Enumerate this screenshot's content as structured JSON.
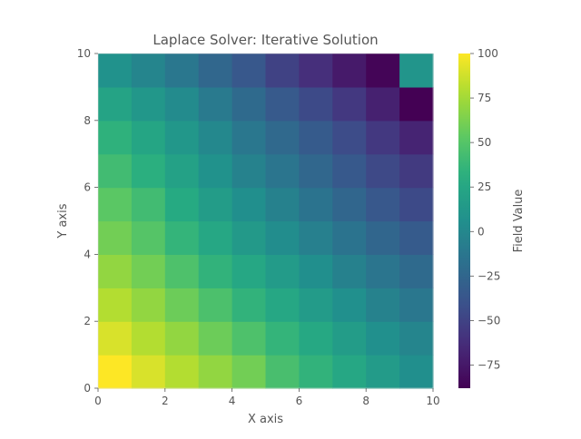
{
  "chart_data": {
    "type": "heatmap",
    "title": "Laplace Solver: Iterative Solution",
    "xlabel": "X axis",
    "ylabel": "Y axis",
    "colorbar_label": "Field Value",
    "colormap": "viridis",
    "xlim": [
      0,
      10
    ],
    "ylim": [
      0,
      10
    ],
    "clim": [
      -88,
      100
    ],
    "x_ticks": [
      "0",
      "2",
      "4",
      "6",
      "8",
      "10"
    ],
    "y_ticks": [
      "0",
      "2",
      "4",
      "6",
      "8",
      "10"
    ],
    "colorbar_ticks": [
      {
        "value": 100,
        "label": "100"
      },
      {
        "value": 75,
        "label": "75"
      },
      {
        "value": 50,
        "label": "50"
      },
      {
        "value": 25,
        "label": "25"
      },
      {
        "value": 0,
        "label": "0"
      },
      {
        "value": -25,
        "label": "−25"
      },
      {
        "value": -50,
        "label": "−50"
      },
      {
        "value": -75,
        "label": "−75"
      }
    ],
    "grid": false,
    "cell_size": 1,
    "rows_bottom_to_top": [
      [
        100,
        90,
        80,
        70,
        60,
        45,
        35,
        25,
        15,
        5
      ],
      [
        90,
        80,
        70,
        58,
        47,
        36,
        26,
        16,
        6,
        -2
      ],
      [
        80,
        70,
        58,
        46,
        35,
        25,
        15,
        6,
        -4,
        -12
      ],
      [
        70,
        60,
        47,
        35,
        25,
        15,
        5,
        -5,
        -14,
        -22
      ],
      [
        60,
        50,
        36,
        25,
        14,
        4,
        -6,
        -15,
        -25,
        -33
      ],
      [
        52,
        42,
        28,
        16,
        5,
        -5,
        -15,
        -25,
        -36,
        -45
      ],
      [
        42,
        32,
        20,
        8,
        -4,
        -14,
        -24,
        -35,
        -46,
        -55
      ],
      [
        34,
        24,
        12,
        0,
        -12,
        -23,
        -33,
        -44,
        -56,
        -68
      ],
      [
        22,
        12,
        2,
        -10,
        -22,
        -34,
        -45,
        -56,
        -70,
        -88
      ],
      [
        8,
        -2,
        -12,
        -24,
        -36,
        -50,
        -62,
        -74,
        -86,
        10
      ]
    ]
  }
}
